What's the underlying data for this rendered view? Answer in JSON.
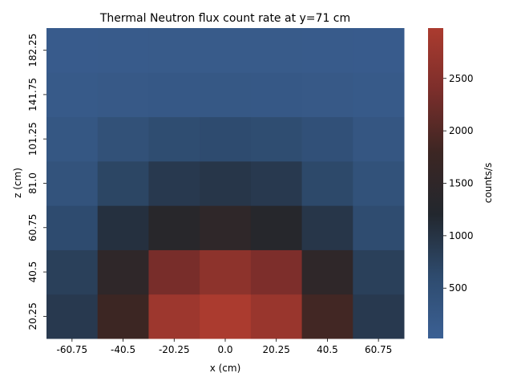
{
  "chart_data": {
    "type": "heatmap",
    "title": "Thermal Neutron flux count rate at y=71 cm",
    "xlabel": "x (cm)",
    "ylabel": "z (cm)",
    "x_categories": [
      "-60.75",
      "-40.5",
      "-20.25",
      "0.0",
      "20.25",
      "40.5",
      "60.75"
    ],
    "y_categories": [
      "20.25",
      "40.5",
      "60.75",
      "81.0",
      "101.25",
      "141.75",
      "182.25"
    ],
    "values": [
      [
        900,
        1800,
        2800,
        2980,
        2750,
        1850,
        900
      ],
      [
        800,
        1500,
        2350,
        2600,
        2400,
        1500,
        800
      ],
      [
        600,
        1050,
        1350,
        1500,
        1300,
        950,
        580
      ],
      [
        400,
        700,
        900,
        950,
        900,
        650,
        420
      ],
      [
        280,
        450,
        560,
        600,
        560,
        460,
        300
      ],
      [
        190,
        220,
        240,
        250,
        240,
        220,
        190
      ],
      [
        150,
        160,
        170,
        175,
        170,
        160,
        150
      ]
    ],
    "colorbar": {
      "label": "counts/s",
      "min": 20,
      "max": 2980,
      "ticks": [
        500,
        1000,
        1500,
        2000,
        2500
      ],
      "stops": [
        "#3b6094",
        "#2e4b6e",
        "#22272e",
        "#3c2623",
        "#7c2e2b",
        "#ab3b2f"
      ]
    }
  }
}
